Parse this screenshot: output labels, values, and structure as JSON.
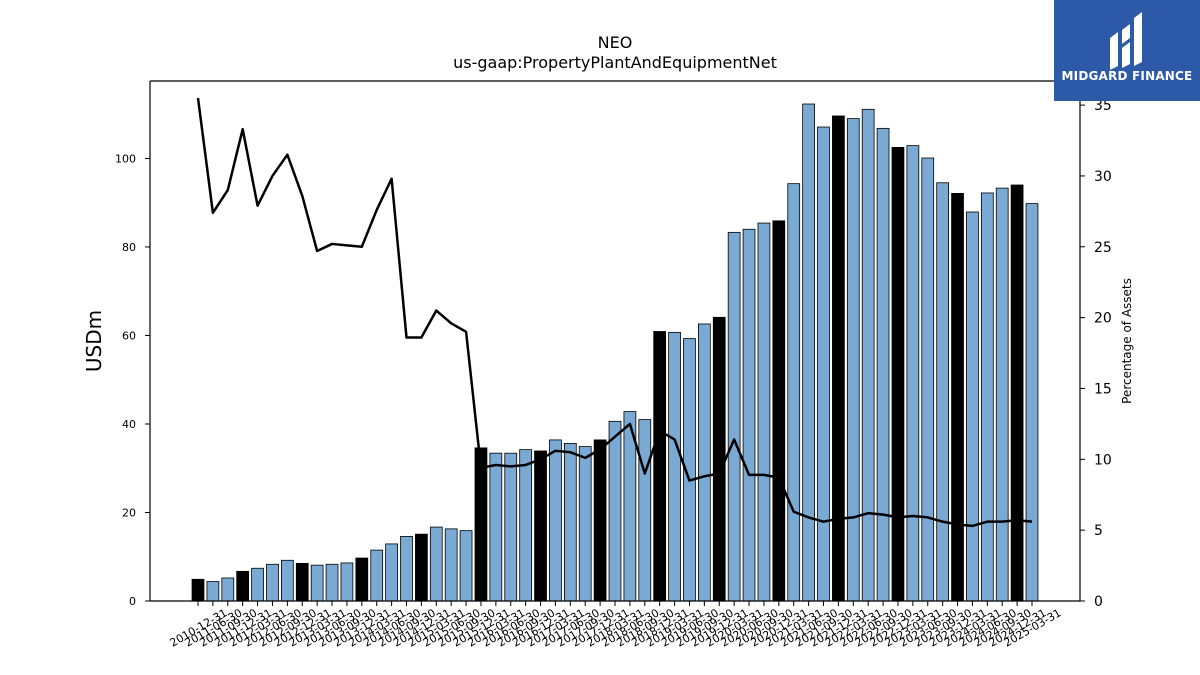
{
  "chart_data": {
    "type": "bar",
    "title": "NEO",
    "subtitle": "us-gaap:PropertyPlantAndEquipmentNet",
    "ylabel": "USDm",
    "y2label": "Percentage of Assets",
    "ylim": [
      0,
      117.5
    ],
    "y2lim": [
      0,
      36.7
    ],
    "yticks": [
      0,
      20,
      40,
      60,
      80,
      100
    ],
    "y2ticks": [
      0,
      5,
      10,
      15,
      20,
      25,
      30,
      35
    ],
    "bar_color": "#7aaad4",
    "highlight_color": "#000000",
    "line_color": "#000000",
    "categories": [
      "2010-12-31",
      "2011-06-30",
      "2011-09-30",
      "2011-12-31",
      "2012-03-31",
      "2012-06-30",
      "2012-09-30",
      "2012-12-31",
      "2013-03-31",
      "2013-06-30",
      "2013-09-30",
      "2013-12-31",
      "2014-03-31",
      "2014-06-30",
      "2014-09-30",
      "2014-12-31",
      "2015-03-31",
      "2015-06-30",
      "2015-09-30",
      "2015-12-31",
      "2016-03-31",
      "2016-06-30",
      "2016-09-30",
      "2016-12-31",
      "2017-03-31",
      "2017-06-30",
      "2017-09-30",
      "2017-12-31",
      "2018-03-31",
      "2018-06-30",
      "2018-09-30",
      "2018-12-31",
      "2019-03-31",
      "2019-06-30",
      "2019-09-30",
      "2019-12-31",
      "2020-03-31",
      "2020-06-30",
      "2020-09-30",
      "2020-12-31",
      "2021-03-31",
      "2021-06-30",
      "2021-09-30",
      "2021-12-31",
      "2022-03-31",
      "2022-06-30",
      "2022-09-30",
      "2022-12-31",
      "2023-03-31",
      "2023-06-30",
      "2023-09-30",
      "2023-12-31",
      "2024-03-31",
      "2024-06-30",
      "2024-09-30",
      "2024-12-31",
      "2025-03-31"
    ],
    "series": [
      {
        "kind": "bar",
        "values": [
          4.9,
          4.4,
          5.2,
          6.7,
          7.4,
          8.3,
          9.2,
          8.5,
          8.1,
          8.3,
          8.6,
          9.7,
          11.5,
          12.9,
          14.6,
          15.1,
          16.7,
          16.3,
          15.9,
          34.6,
          33.4,
          33.4,
          34.2,
          33.9,
          36.4,
          35.6,
          34.9,
          36.4,
          40.6,
          42.8,
          41.0,
          60.9,
          60.7,
          59.3,
          62.6,
          64.1,
          83.3,
          84.0,
          85.4,
          85.9,
          94.3,
          112.3,
          107.1,
          109.6,
          109.0,
          111.1,
          106.8,
          102.5,
          102.9,
          100.1,
          94.5,
          92.1,
          87.9,
          92.2,
          93.3,
          94.0,
          89.8
        ],
        "highlight": [
          true,
          false,
          false,
          true,
          false,
          false,
          false,
          true,
          false,
          false,
          false,
          true,
          false,
          false,
          false,
          true,
          false,
          false,
          false,
          true,
          false,
          false,
          false,
          true,
          false,
          false,
          false,
          true,
          false,
          false,
          false,
          true,
          false,
          false,
          false,
          true,
          false,
          false,
          false,
          true,
          false,
          false,
          false,
          true,
          false,
          false,
          false,
          true,
          false,
          false,
          false,
          true,
          false,
          false,
          false,
          true,
          false
        ]
      },
      {
        "kind": "line",
        "axis": "right",
        "values": [
          35.5,
          27.4,
          29.0,
          33.3,
          27.9,
          30.0,
          31.5,
          28.6,
          24.7,
          25.2,
          25.1,
          25.0,
          27.6,
          29.8,
          18.6,
          18.6,
          20.5,
          19.6,
          19.0,
          9.4,
          9.6,
          9.5,
          9.6,
          10.0,
          10.6,
          10.5,
          10.1,
          10.7,
          11.6,
          12.5,
          9.0,
          12.0,
          11.4,
          8.5,
          8.8,
          9.0,
          11.4,
          8.9,
          8.9,
          8.7,
          6.3,
          5.9,
          5.6,
          5.8,
          5.9,
          6.2,
          6.1,
          5.9,
          6.0,
          5.9,
          5.6,
          5.4,
          5.3,
          5.6,
          5.6,
          5.7,
          5.6
        ]
      }
    ],
    "grid": false
  },
  "brand": {
    "logo_text": "MIDGARD FINANCE",
    "logo_color": "#2d5aa8"
  }
}
